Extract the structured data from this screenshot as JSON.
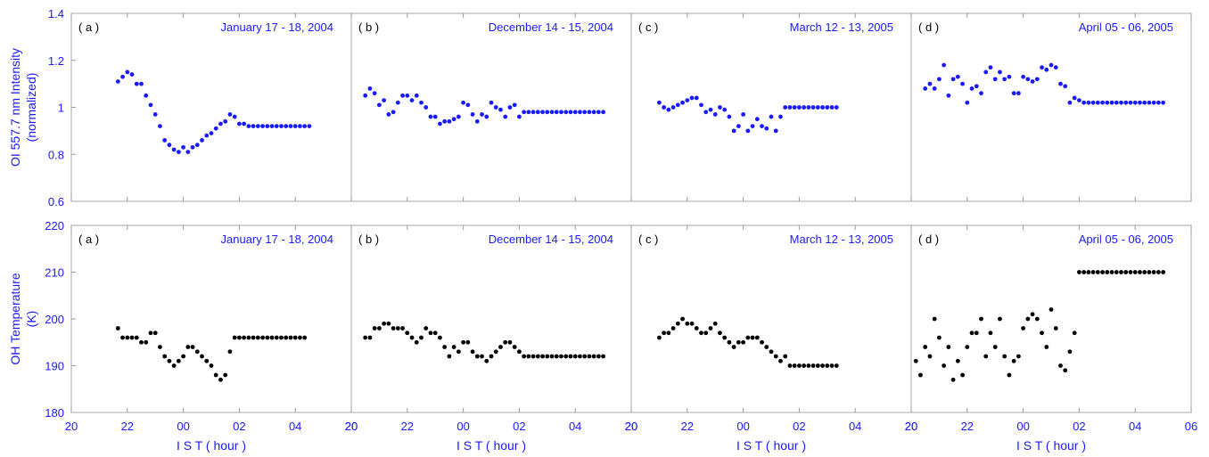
{
  "colors": {
    "oi": "#1a1aff",
    "oh": "#000000",
    "axis_text": "#1a1aff",
    "frame": "#a8a8a8"
  },
  "chart_data": [
    {
      "type": "scatter",
      "row": "top",
      "ylabel_line1": "OI 557.7 nm Intensity",
      "ylabel_line2": "(normalized)",
      "ylim": [
        0.6,
        1.4
      ],
      "yticks": [
        "0.6",
        "0.8",
        "1",
        "1.2",
        "1.4"
      ],
      "panels": [
        {
          "label": "( a )",
          "title": "January 17 - 18, 2004",
          "x": [
            "21:40",
            "21:50",
            "22:00",
            "22:10",
            "22:20",
            "22:30",
            "22:40",
            "22:50",
            "23:00",
            "23:10",
            "23:20",
            "23:30",
            "23:40",
            "23:50",
            "00:00",
            "00:10",
            "00:20",
            "00:30",
            "00:40",
            "00:50",
            "01:00",
            "01:10",
            "01:20",
            "01:30",
            "01:40",
            "01:50",
            "02:00",
            "02:10",
            "02:20",
            "02:30",
            "02:40",
            "02:50",
            "03:00",
            "03:10",
            "03:20",
            "03:30",
            "03:40",
            "03:50",
            "04:00",
            "04:10",
            "04:20",
            "04:30"
          ],
          "y": [
            1.11,
            1.13,
            1.15,
            1.14,
            1.1,
            1.1,
            1.05,
            1.01,
            0.97,
            0.92,
            0.86,
            0.84,
            0.82,
            0.81,
            0.83,
            0.81,
            0.83,
            0.84,
            0.86,
            0.88,
            0.89,
            0.91,
            0.93,
            0.94,
            0.97,
            0.96,
            0.93,
            0.93,
            0.92,
            0.92,
            0.92,
            0.92,
            0.92,
            0.92,
            0.92,
            0.92,
            0.92,
            0.92,
            0.92,
            0.92,
            0.92,
            0.92
          ]
        },
        {
          "label": "( b )",
          "title": "December 14 - 15, 2004",
          "x": [
            "20:30",
            "20:40",
            "20:50",
            "21:00",
            "21:10",
            "21:20",
            "21:30",
            "21:40",
            "21:50",
            "22:00",
            "22:10",
            "22:20",
            "22:30",
            "22:40",
            "22:50",
            "23:00",
            "23:10",
            "23:20",
            "23:30",
            "23:40",
            "23:50",
            "00:00",
            "00:10",
            "00:20",
            "00:30",
            "00:40",
            "00:50",
            "01:00",
            "01:10",
            "01:20",
            "01:30",
            "01:40",
            "01:50",
            "02:00",
            "02:10",
            "02:20",
            "02:30",
            "02:40",
            "02:50",
            "03:00",
            "03:10",
            "03:20",
            "03:30",
            "03:40",
            "03:50",
            "04:00",
            "04:10",
            "04:20",
            "04:30",
            "04:40",
            "04:50",
            "05:00"
          ],
          "y": [
            1.05,
            1.08,
            1.06,
            1.01,
            1.03,
            0.97,
            0.98,
            1.02,
            1.05,
            1.05,
            1.03,
            1.05,
            1.02,
            1.0,
            0.96,
            0.96,
            0.93,
            0.94,
            0.94,
            0.95,
            0.96,
            1.02,
            1.01,
            0.97,
            0.94,
            0.97,
            0.96,
            1.02,
            1.0,
            0.99,
            0.96,
            1.0,
            1.01,
            0.96,
            0.98,
            0.98,
            0.98,
            0.98,
            0.98,
            0.98,
            0.98,
            0.98,
            0.98,
            0.98,
            0.98,
            0.98,
            0.98,
            0.98,
            0.98,
            0.98,
            0.98,
            0.98
          ]
        },
        {
          "label": "( c )",
          "title": "March 12 - 13, 2005",
          "x": [
            "21:00",
            "21:10",
            "21:20",
            "21:30",
            "21:40",
            "21:50",
            "22:00",
            "22:10",
            "22:20",
            "22:30",
            "22:40",
            "22:50",
            "23:00",
            "23:10",
            "23:20",
            "23:30",
            "23:40",
            "23:50",
            "00:00",
            "00:10",
            "00:20",
            "00:30",
            "00:40",
            "00:50",
            "01:00",
            "01:10",
            "01:20",
            "01:30",
            "01:40",
            "01:50",
            "02:00",
            "02:10",
            "02:20",
            "02:30",
            "02:40",
            "02:50",
            "03:00",
            "03:10",
            "03:20"
          ],
          "y": [
            1.02,
            1.0,
            0.99,
            1.0,
            1.01,
            1.02,
            1.03,
            1.04,
            1.04,
            1.01,
            0.98,
            0.99,
            0.97,
            1.0,
            0.99,
            0.96,
            0.9,
            0.92,
            0.97,
            0.9,
            0.92,
            0.95,
            0.92,
            0.91,
            0.96,
            0.9,
            0.96,
            1.0,
            1.0,
            1.0,
            1.0,
            1.0,
            1.0,
            1.0,
            1.0,
            1.0,
            1.0,
            1.0,
            1.0
          ]
        },
        {
          "label": "( d )",
          "title": "April 05 - 06, 2005",
          "x": [
            "20:30",
            "20:40",
            "20:50",
            "21:00",
            "21:10",
            "21:20",
            "21:30",
            "21:40",
            "21:50",
            "22:00",
            "22:10",
            "22:20",
            "22:30",
            "22:40",
            "22:50",
            "23:00",
            "23:10",
            "23:20",
            "23:30",
            "23:40",
            "23:50",
            "00:00",
            "00:10",
            "00:20",
            "00:30",
            "00:40",
            "00:50",
            "01:00",
            "01:10",
            "01:20",
            "01:30",
            "01:40",
            "01:50",
            "02:00",
            "02:10",
            "02:20",
            "02:30",
            "02:40",
            "02:50",
            "03:00",
            "03:10",
            "03:20",
            "03:30",
            "03:40",
            "03:50",
            "04:00",
            "04:10",
            "04:20",
            "04:30",
            "04:40",
            "04:50",
            "05:00"
          ],
          "y": [
            1.08,
            1.1,
            1.08,
            1.12,
            1.18,
            1.05,
            1.12,
            1.13,
            1.1,
            1.02,
            1.08,
            1.09,
            1.06,
            1.15,
            1.17,
            1.12,
            1.15,
            1.12,
            1.13,
            1.06,
            1.06,
            1.13,
            1.12,
            1.11,
            1.12,
            1.17,
            1.16,
            1.18,
            1.17,
            1.1,
            1.09,
            1.02,
            1.04,
            1.03,
            1.02,
            1.02,
            1.02,
            1.02,
            1.02,
            1.02,
            1.02,
            1.02,
            1.02,
            1.02,
            1.02,
            1.02,
            1.02,
            1.02,
            1.02,
            1.02,
            1.02,
            1.02
          ]
        }
      ]
    },
    {
      "type": "scatter",
      "row": "bottom",
      "ylabel_line1": "OH Temperature",
      "ylabel_line2": "(K)",
      "ylim": [
        180,
        220
      ],
      "yticks": [
        "180",
        "190",
        "200",
        "210",
        "220"
      ],
      "xlabel": "I S T  ( hour )",
      "panels": [
        {
          "label": "( a )",
          "title": "January 17 - 18, 2004",
          "x": [
            "21:40",
            "21:50",
            "22:00",
            "22:10",
            "22:20",
            "22:30",
            "22:40",
            "22:50",
            "23:00",
            "23:10",
            "23:20",
            "23:30",
            "23:40",
            "23:50",
            "00:00",
            "00:10",
            "00:20",
            "00:30",
            "00:40",
            "00:50",
            "01:00",
            "01:10",
            "01:20",
            "01:30",
            "01:40",
            "01:50",
            "02:00",
            "02:10",
            "02:20",
            "02:30",
            "02:40",
            "02:50",
            "03:00",
            "03:10",
            "03:20",
            "03:30",
            "03:40",
            "03:50",
            "04:00",
            "04:10",
            "04:20"
          ],
          "y": [
            198,
            196,
            196,
            196,
            196,
            195,
            195,
            197,
            197,
            194,
            192,
            191,
            190,
            191,
            192,
            194,
            194,
            193,
            192,
            191,
            190,
            188,
            187,
            188,
            193,
            196,
            196,
            196,
            196,
            196,
            196,
            196,
            196,
            196,
            196,
            196,
            196,
            196,
            196,
            196,
            196
          ]
        },
        {
          "label": "( b )",
          "title": "December 14 - 15, 2004",
          "x": [
            "20:30",
            "20:40",
            "20:50",
            "21:00",
            "21:10",
            "21:20",
            "21:30",
            "21:40",
            "21:50",
            "22:00",
            "22:10",
            "22:20",
            "22:30",
            "22:40",
            "22:50",
            "23:00",
            "23:10",
            "23:20",
            "23:30",
            "23:40",
            "23:50",
            "00:00",
            "00:10",
            "00:20",
            "00:30",
            "00:40",
            "00:50",
            "01:00",
            "01:10",
            "01:20",
            "01:30",
            "01:40",
            "01:50",
            "02:00",
            "02:10",
            "02:20",
            "02:30",
            "02:40",
            "02:50",
            "03:00",
            "03:10",
            "03:20",
            "03:30",
            "03:40",
            "03:50",
            "04:00",
            "04:10",
            "04:20",
            "04:30",
            "04:40",
            "04:50",
            "05:00"
          ],
          "y": [
            196,
            196,
            198,
            198,
            199,
            199,
            198,
            198,
            198,
            197,
            196,
            195,
            196,
            198,
            197,
            197,
            196,
            194,
            192,
            194,
            193,
            195,
            195,
            193,
            192,
            192,
            191,
            192,
            193,
            194,
            195,
            195,
            194,
            193,
            192,
            192,
            192,
            192,
            192,
            192,
            192,
            192,
            192,
            192,
            192,
            192,
            192,
            192,
            192,
            192,
            192,
            192
          ]
        },
        {
          "label": "( c )",
          "title": "March 12 - 13, 2005",
          "x": [
            "21:00",
            "21:10",
            "21:20",
            "21:30",
            "21:40",
            "21:50",
            "22:00",
            "22:10",
            "22:20",
            "22:30",
            "22:40",
            "22:50",
            "23:00",
            "23:10",
            "23:20",
            "23:30",
            "23:40",
            "23:50",
            "00:00",
            "00:10",
            "00:20",
            "00:30",
            "00:40",
            "00:50",
            "01:00",
            "01:10",
            "01:20",
            "01:30",
            "01:40",
            "01:50",
            "02:00",
            "02:10",
            "02:20",
            "02:30",
            "02:40",
            "02:50",
            "03:00",
            "03:10",
            "03:20"
          ],
          "y": [
            196,
            197,
            197,
            198,
            199,
            200,
            199,
            199,
            198,
            197,
            197,
            198,
            199,
            197,
            196,
            195,
            194,
            195,
            195,
            196,
            196,
            196,
            195,
            194,
            193,
            192,
            191,
            192,
            190,
            190,
            190,
            190,
            190,
            190,
            190,
            190,
            190,
            190,
            190
          ]
        },
        {
          "label": "( d )",
          "title": "April 05 - 06, 2005",
          "x": [
            "20:10",
            "20:20",
            "20:30",
            "20:40",
            "20:50",
            "21:00",
            "21:10",
            "21:20",
            "21:30",
            "21:40",
            "21:50",
            "22:00",
            "22:10",
            "22:20",
            "22:30",
            "22:40",
            "22:50",
            "23:00",
            "23:10",
            "23:20",
            "23:30",
            "23:40",
            "23:50",
            "00:00",
            "00:10",
            "00:20",
            "00:30",
            "00:40",
            "00:50",
            "01:00",
            "01:10",
            "01:20",
            "01:30",
            "01:40",
            "01:50",
            "02:00",
            "02:10",
            "02:20",
            "02:30",
            "02:40",
            "02:50",
            "03:00",
            "03:10",
            "03:20",
            "03:30",
            "03:40",
            "03:50",
            "04:00",
            "04:10",
            "04:20",
            "04:30",
            "04:40",
            "04:50",
            "05:00"
          ],
          "y": [
            191,
            188,
            194,
            192,
            200,
            196,
            190,
            194,
            187,
            191,
            188,
            194,
            197,
            197,
            200,
            192,
            197,
            194,
            200,
            192,
            188,
            191,
            192,
            198,
            200,
            201,
            200,
            197,
            194,
            202,
            198,
            190,
            189,
            193,
            197,
            210,
            210,
            210,
            210,
            210,
            210,
            210,
            210,
            210,
            210,
            210,
            210,
            210,
            210,
            210,
            210,
            210,
            210,
            210
          ]
        }
      ]
    }
  ],
  "x_axis": {
    "ticks": [
      "20",
      "22",
      "00",
      "02",
      "04"
    ],
    "last_tick": "06",
    "xlabel": "I S T  ( hour )"
  }
}
